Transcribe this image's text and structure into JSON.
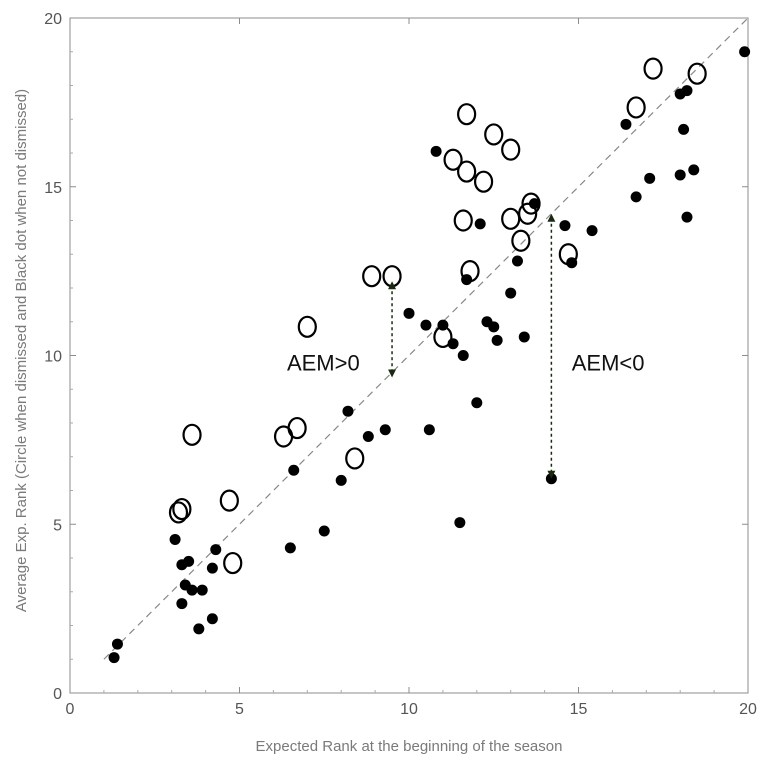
{
  "chart_data": {
    "type": "scatter",
    "xlabel": "Expected Rank at the beginning of the season",
    "ylabel": "Average Exp. Rank (Circle when dismissed and Black dot when not dismissed)",
    "xlim": [
      0,
      20
    ],
    "ylim": [
      0,
      20
    ],
    "x_ticks": [
      "0",
      "5",
      "10",
      "15",
      "20"
    ],
    "y_ticks": [
      "0",
      "5",
      "10",
      "15",
      "20"
    ],
    "grid": false,
    "reference_line": {
      "style": "dashed",
      "from": [
        1,
        1
      ],
      "to": [
        20,
        20
      ],
      "color": "#888888"
    },
    "series": [
      {
        "marker": "open-circle",
        "color": "#000000",
        "points": [
          [
            3.2,
            5.35
          ],
          [
            3.3,
            5.45
          ],
          [
            3.6,
            7.65
          ],
          [
            4.7,
            5.7
          ],
          [
            4.8,
            3.85
          ],
          [
            6.3,
            7.6
          ],
          [
            6.7,
            7.85
          ],
          [
            7.0,
            10.85
          ],
          [
            8.4,
            6.95
          ],
          [
            8.9,
            12.35
          ],
          [
            9.5,
            12.35
          ],
          [
            11.0,
            10.55
          ],
          [
            11.3,
            15.8
          ],
          [
            11.6,
            14.0
          ],
          [
            11.7,
            15.45
          ],
          [
            11.7,
            17.15
          ],
          [
            11.8,
            12.5
          ],
          [
            12.2,
            15.15
          ],
          [
            12.5,
            16.55
          ],
          [
            13.0,
            14.05
          ],
          [
            13.0,
            16.1
          ],
          [
            13.3,
            13.4
          ],
          [
            13.5,
            14.2
          ],
          [
            13.6,
            14.5
          ],
          [
            14.7,
            13.0
          ],
          [
            16.7,
            17.35
          ],
          [
            17.2,
            18.5
          ],
          [
            18.5,
            18.35
          ]
        ]
      },
      {
        "marker": "filled-dot",
        "color": "#000000",
        "points": [
          [
            1.3,
            1.05
          ],
          [
            1.4,
            1.45
          ],
          [
            3.1,
            4.55
          ],
          [
            3.3,
            3.8
          ],
          [
            3.3,
            2.65
          ],
          [
            3.4,
            3.2
          ],
          [
            3.5,
            3.9
          ],
          [
            3.6,
            3.05
          ],
          [
            3.8,
            1.9
          ],
          [
            3.9,
            3.05
          ],
          [
            4.2,
            2.2
          ],
          [
            4.2,
            3.7
          ],
          [
            4.3,
            4.25
          ],
          [
            6.5,
            4.3
          ],
          [
            6.6,
            6.6
          ],
          [
            7.5,
            4.8
          ],
          [
            8.0,
            6.3
          ],
          [
            8.2,
            8.35
          ],
          [
            8.8,
            7.6
          ],
          [
            9.3,
            7.8
          ],
          [
            10.0,
            11.25
          ],
          [
            10.5,
            10.9
          ],
          [
            10.6,
            7.8
          ],
          [
            10.8,
            16.05
          ],
          [
            11.0,
            10.9
          ],
          [
            11.3,
            10.35
          ],
          [
            11.5,
            5.05
          ],
          [
            11.6,
            10.0
          ],
          [
            11.7,
            12.25
          ],
          [
            12.0,
            8.6
          ],
          [
            12.1,
            13.9
          ],
          [
            12.3,
            11.0
          ],
          [
            12.5,
            10.85
          ],
          [
            12.6,
            10.45
          ],
          [
            13.0,
            11.85
          ],
          [
            13.2,
            12.8
          ],
          [
            13.4,
            10.55
          ],
          [
            13.7,
            14.5
          ],
          [
            14.2,
            6.35
          ],
          [
            14.6,
            13.85
          ],
          [
            14.8,
            12.75
          ],
          [
            15.4,
            13.7
          ],
          [
            16.4,
            16.85
          ],
          [
            16.7,
            14.7
          ],
          [
            17.1,
            15.25
          ],
          [
            18.0,
            15.35
          ],
          [
            18.0,
            17.75
          ],
          [
            18.1,
            16.7
          ],
          [
            18.2,
            17.85
          ],
          [
            18.2,
            14.1
          ],
          [
            18.4,
            15.5
          ],
          [
            19.9,
            19.0
          ]
        ]
      }
    ],
    "annotations": [
      {
        "text": "AEM>0",
        "x": 6.4,
        "y": 9.8,
        "arrow": {
          "x": 9.5,
          "from_y": 12.2,
          "to_y": 9.35,
          "style": "dashed double-headed"
        }
      },
      {
        "text": "AEM<0",
        "x": 14.8,
        "y": 9.8,
        "arrow": {
          "x": 14.2,
          "from_y": 14.2,
          "to_y": 6.35,
          "style": "dashed double-headed"
        }
      }
    ]
  }
}
